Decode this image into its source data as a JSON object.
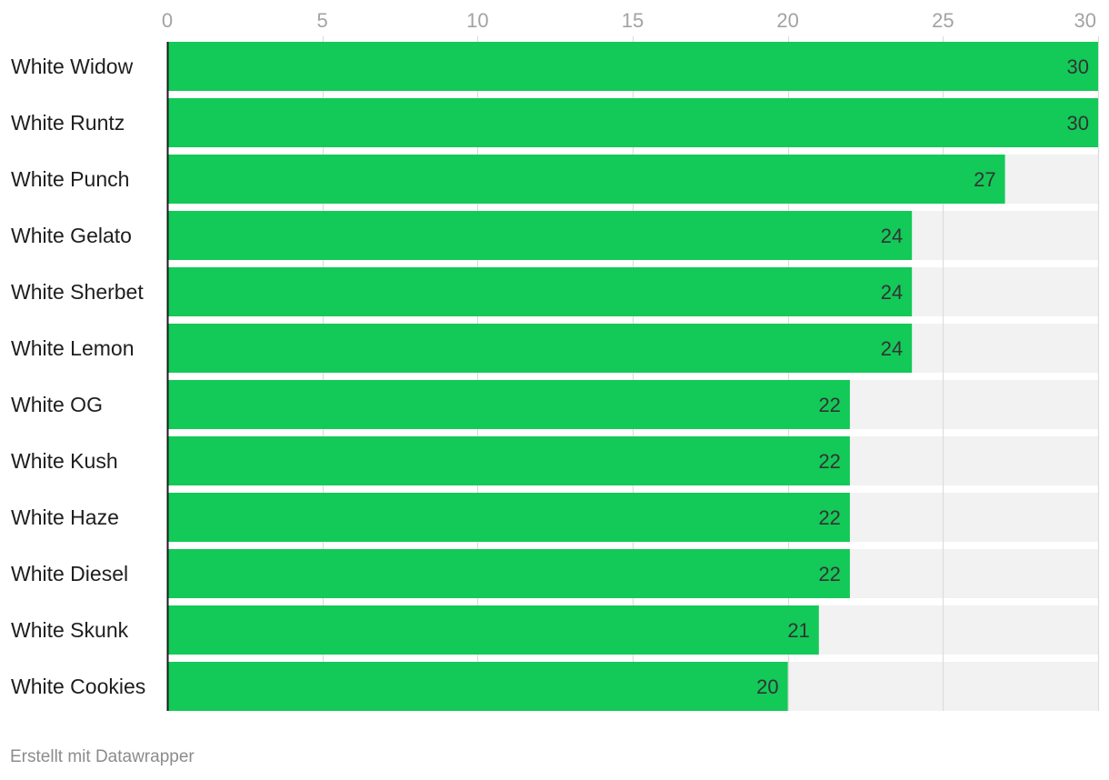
{
  "chart_data": {
    "type": "bar",
    "orientation": "horizontal",
    "categories": [
      "White Widow",
      "White Runtz",
      "White Punch",
      "White Gelato",
      "White Sherbet",
      "White Lemon",
      "White OG",
      "White Kush",
      "White Haze",
      "White Diesel",
      "White Skunk",
      "White Cookies"
    ],
    "values": [
      30,
      30,
      27,
      24,
      24,
      24,
      22,
      22,
      22,
      22,
      21,
      20
    ],
    "value_labels": [
      "30",
      "30",
      "27",
      "24",
      "24",
      "24",
      "22",
      "22",
      "22",
      "22",
      "21",
      "20"
    ],
    "title": "",
    "xlabel": "",
    "ylabel": "",
    "xlim": [
      0,
      30
    ],
    "xticks": [
      0,
      5,
      10,
      15,
      20,
      25,
      30
    ],
    "xtick_labels": [
      "0",
      "5",
      "10",
      "15",
      "20",
      "25",
      "30"
    ],
    "axis_position": "top",
    "grid": true,
    "legend": "none",
    "colors": {
      "bar": "#13c958",
      "track": "#f2f2f2",
      "grid": "#dcdcdc",
      "axis": "#1a1a1a"
    }
  },
  "footer": {
    "credit": "Erstellt mit Datawrapper"
  }
}
